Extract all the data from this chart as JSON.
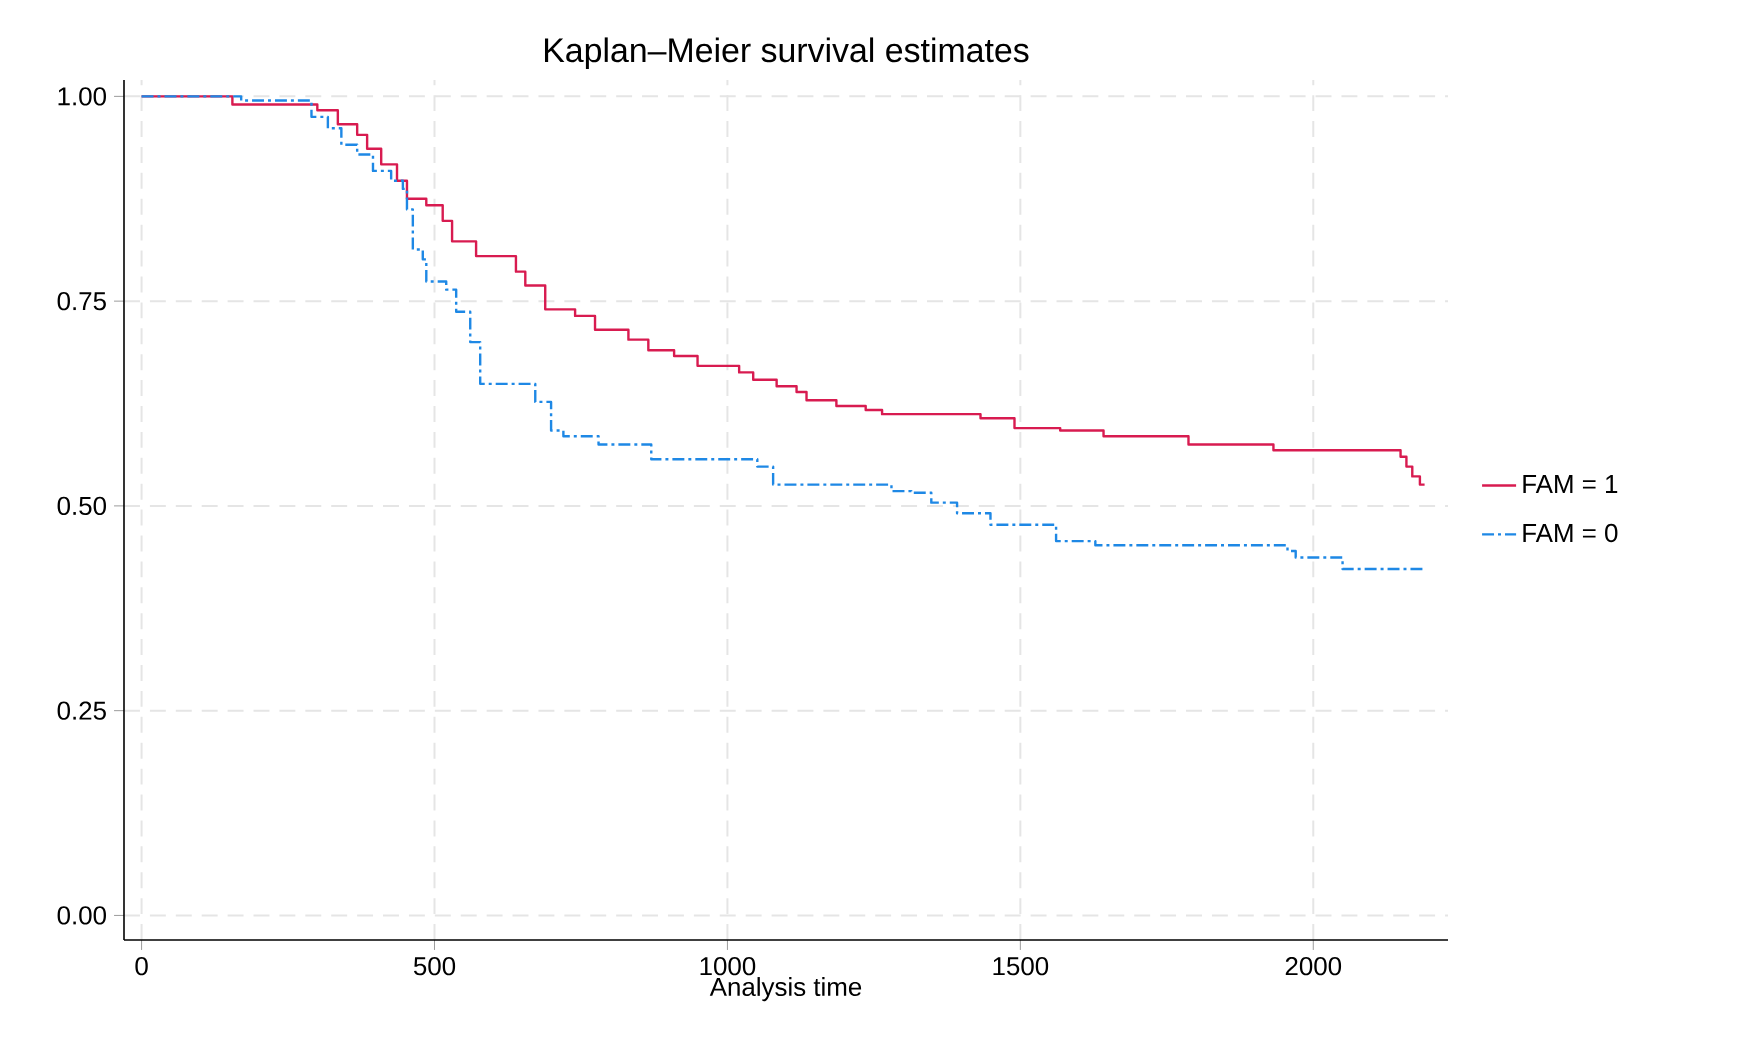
{
  "chart_data": {
    "type": "step",
    "title": "Kaplan–Meier survival estimates",
    "xlabel": "Analysis time",
    "xlim": [
      -30,
      2230
    ],
    "ylim": [
      -0.03,
      1.02
    ],
    "xticks": [
      0,
      500,
      1000,
      1500,
      2000
    ],
    "yticks": [
      {
        "value": 0,
        "label": "0.00"
      },
      {
        "value": 0.25,
        "label": "0.25"
      },
      {
        "value": 0.5,
        "label": "0.50"
      },
      {
        "value": 0.75,
        "label": "0.75"
      },
      {
        "value": 1,
        "label": "1.00"
      }
    ],
    "grid": true,
    "legend": "right",
    "series": [
      {
        "name": "FAM = 1",
        "color": "#d81b50",
        "line_style": "solid",
        "x": [
          0,
          155,
          300,
          335,
          368,
          385,
          409,
          436,
          453,
          486,
          514,
          530,
          571,
          639,
          655,
          689,
          740,
          774,
          831,
          865,
          909,
          949,
          1020,
          1044,
          1084,
          1118,
          1135,
          1186,
          1236,
          1264,
          1432,
          1490,
          1568,
          1642,
          1787,
          1932,
          2149,
          2159,
          2169,
          2182,
          2190
        ],
        "values": [
          1.0,
          0.99,
          0.983,
          0.966,
          0.953,
          0.936,
          0.917,
          0.897,
          0.875,
          0.867,
          0.848,
          0.823,
          0.805,
          0.786,
          0.769,
          0.74,
          0.732,
          0.715,
          0.703,
          0.69,
          0.683,
          0.671,
          0.663,
          0.654,
          0.646,
          0.639,
          0.629,
          0.622,
          0.617,
          0.612,
          0.607,
          0.595,
          0.592,
          0.585,
          0.575,
          0.568,
          0.56,
          0.548,
          0.536,
          0.526,
          0.526
        ]
      },
      {
        "name": "FAM = 0",
        "color": "#1e88e5",
        "line_style": "dashed",
        "x": [
          0,
          170,
          290,
          318,
          341,
          368,
          395,
          426,
          446,
          453,
          463,
          480,
          486,
          520,
          537,
          561,
          578,
          672,
          699,
          720,
          780,
          870,
          1051,
          1078,
          1280,
          1314,
          1348,
          1392,
          1449,
          1561,
          1628,
          1956,
          1970,
          2050,
          2190
        ],
        "values": [
          1.0,
          0.995,
          0.975,
          0.961,
          0.941,
          0.929,
          0.909,
          0.897,
          0.887,
          0.862,
          0.813,
          0.801,
          0.774,
          0.764,
          0.737,
          0.7,
          0.649,
          0.627,
          0.592,
          0.585,
          0.575,
          0.557,
          0.548,
          0.526,
          0.518,
          0.516,
          0.504,
          0.491,
          0.477,
          0.457,
          0.452,
          0.445,
          0.437,
          0.423,
          0.423
        ]
      }
    ]
  }
}
